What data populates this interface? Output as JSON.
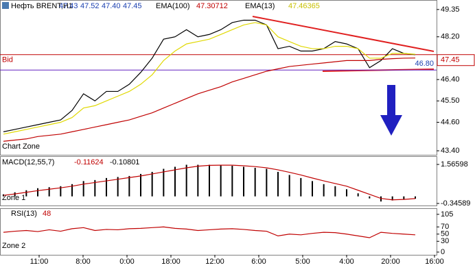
{
  "chart_data": [
    {
      "type": "line",
      "ohlc": [
        "47.43",
        "47.52",
        "47.40",
        "47.45"
      ],
      "zone_label": "Chart Zone",
      "series": [
        {
          "name": "Нефть BRENT,H1",
          "color": "#000000",
          "values": [
            44.2,
            44.3,
            44.4,
            44.5,
            44.6,
            44.7,
            45.1,
            45.8,
            45.5,
            45.9,
            45.9,
            46.2,
            46.7,
            47.3,
            48.1,
            48.2,
            48.5,
            48.2,
            48.3,
            48.5,
            48.8,
            48.9,
            48.9,
            48.7,
            47.7,
            47.8,
            47.6,
            47.6,
            47.7,
            48.0,
            47.9,
            47.7,
            46.9,
            47.2,
            47.7,
            47.5,
            47.45
          ]
        },
        {
          "name": "EMA(100)",
          "color": "#c00000",
          "values": [
            43.8,
            43.85,
            43.9,
            44.0,
            44.05,
            44.1,
            44.2,
            44.3,
            44.4,
            44.5,
            44.6,
            44.7,
            44.85,
            45.0,
            45.2,
            45.4,
            45.6,
            45.8,
            45.95,
            46.1,
            46.3,
            46.45,
            46.6,
            46.75,
            46.85,
            46.95,
            47.0,
            47.05,
            47.1,
            47.15,
            47.2,
            47.2,
            47.2,
            47.25,
            47.28,
            47.3,
            47.30712
          ]
        },
        {
          "name": "EMA(13)",
          "color": "#e0d800",
          "values": [
            44.1,
            44.2,
            44.3,
            44.4,
            44.5,
            44.6,
            44.8,
            45.2,
            45.3,
            45.5,
            45.7,
            45.9,
            46.2,
            46.6,
            47.2,
            47.6,
            47.9,
            48.0,
            48.1,
            48.3,
            48.5,
            48.7,
            48.8,
            48.7,
            48.2,
            48.0,
            47.8,
            47.7,
            47.7,
            47.8,
            47.8,
            47.7,
            47.3,
            47.3,
            47.5,
            47.5,
            47.46365
          ]
        }
      ],
      "bid": {
        "label": "Bid",
        "value": 47.45
      },
      "level": {
        "value": 46.8,
        "label": "46.80"
      },
      "ylim": [
        43.23,
        49.75
      ],
      "yticks": [
        49.35,
        {
          "value": 48.2,
          "label": "48.20"
        },
        {
          "value": 46.4,
          "label": "46.40"
        },
        {
          "value": 45.5,
          "label": "45.50"
        },
        {
          "value": 44.6,
          "label": "44.60"
        },
        {
          "value": 43.4,
          "label": "43.40"
        }
      ],
      "xtick_labels": [
        "11:00",
        "8:00",
        "0:00",
        "18:00",
        "12:00",
        "6:00",
        "5:00",
        "4:00",
        "20:00",
        "16:00"
      ]
    },
    {
      "type": "bar",
      "zone_label": "Zone 1",
      "series": [
        {
          "name": "MACD(12,55,7)",
          "color": "#000000",
          "values": [
            0.1,
            0.2,
            0.3,
            0.4,
            0.45,
            0.5,
            0.6,
            0.75,
            0.8,
            0.9,
            0.95,
            1.0,
            1.1,
            1.2,
            1.35,
            1.45,
            1.55,
            1.55,
            1.55,
            1.55,
            1.5,
            1.45,
            1.4,
            1.35,
            1.2,
            1.05,
            0.9,
            0.75,
            0.6,
            0.5,
            0.35,
            0.15,
            -0.1,
            -0.25,
            -0.2,
            -0.15,
            -0.11624
          ]
        },
        {
          "color": "#c00000",
          "values": [
            0.05,
            0.12,
            0.2,
            0.28,
            0.35,
            0.42,
            0.5,
            0.6,
            0.68,
            0.76,
            0.84,
            0.92,
            1.0,
            1.1,
            1.2,
            1.3,
            1.4,
            1.48,
            1.52,
            1.53,
            1.53,
            1.5,
            1.46,
            1.4,
            1.3,
            1.18,
            1.05,
            0.9,
            0.76,
            0.63,
            0.5,
            0.3,
            0.1,
            -0.1,
            -0.17,
            -0.15,
            -0.10801
          ]
        }
      ],
      "ylim": [
        -0.447,
        1.97
      ],
      "yticks": [
        1.56598,
        -0.34589
      ]
    },
    {
      "type": "line",
      "zone_label": "Zone 2",
      "series": [
        {
          "name": "RSI(13)",
          "color": "#c00000",
          "values": [
            55,
            58,
            60,
            57,
            62,
            58,
            65,
            68,
            60,
            63,
            62,
            65,
            66,
            68,
            70,
            66,
            64,
            60,
            62,
            64,
            65,
            63,
            60,
            58,
            45,
            50,
            48,
            52,
            55,
            54,
            50,
            45,
            40,
            55,
            52,
            50,
            48
          ]
        }
      ],
      "ylim": [
        -7.6,
        121.9
      ],
      "yticks": [
        105,
        70,
        50,
        30,
        0
      ]
    }
  ]
}
